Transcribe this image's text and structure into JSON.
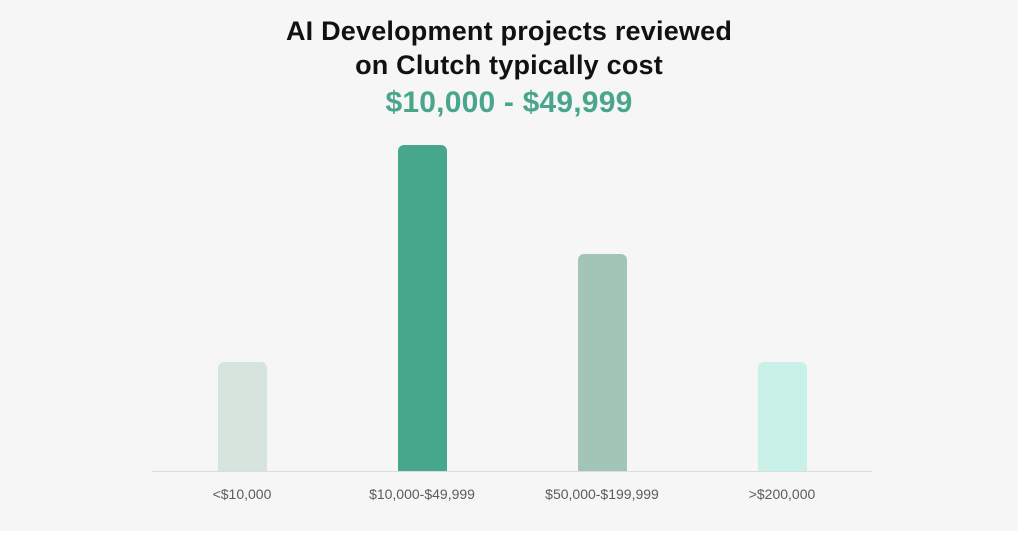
{
  "page": {
    "background_color": "#f6f6f6",
    "bottom_strip_color": "#ffffff",
    "axis_line_color": "#dcdcdc",
    "title_color": "#111111",
    "accent_color": "#4aa68a",
    "label_color": "#5c5c5c"
  },
  "header": {
    "title_line1": "AI Development projects reviewed",
    "title_line2": "on Clutch typically cost",
    "subtitle": "$10,000 - $49,999"
  },
  "chart_data": {
    "type": "bar",
    "title": "AI Development projects reviewed on Clutch typically cost $10,000 - $49,999",
    "categories": [
      "<$10,000",
      "$10,000-$49,999",
      "$50,000-$199,999",
      ">$200,000"
    ],
    "values": [
      1,
      3,
      2,
      1
    ],
    "value_scale": "relative (no y-axis or value labels shown; bar heights in 1:3:2:1 ratio)",
    "colors": [
      "#d6e4dd",
      "#47a78c",
      "#a3c5b7",
      "#c9f1e7"
    ],
    "xlabel": "",
    "ylabel": "",
    "grid": false,
    "legend": false,
    "bar_corner_radius_px": 6
  }
}
